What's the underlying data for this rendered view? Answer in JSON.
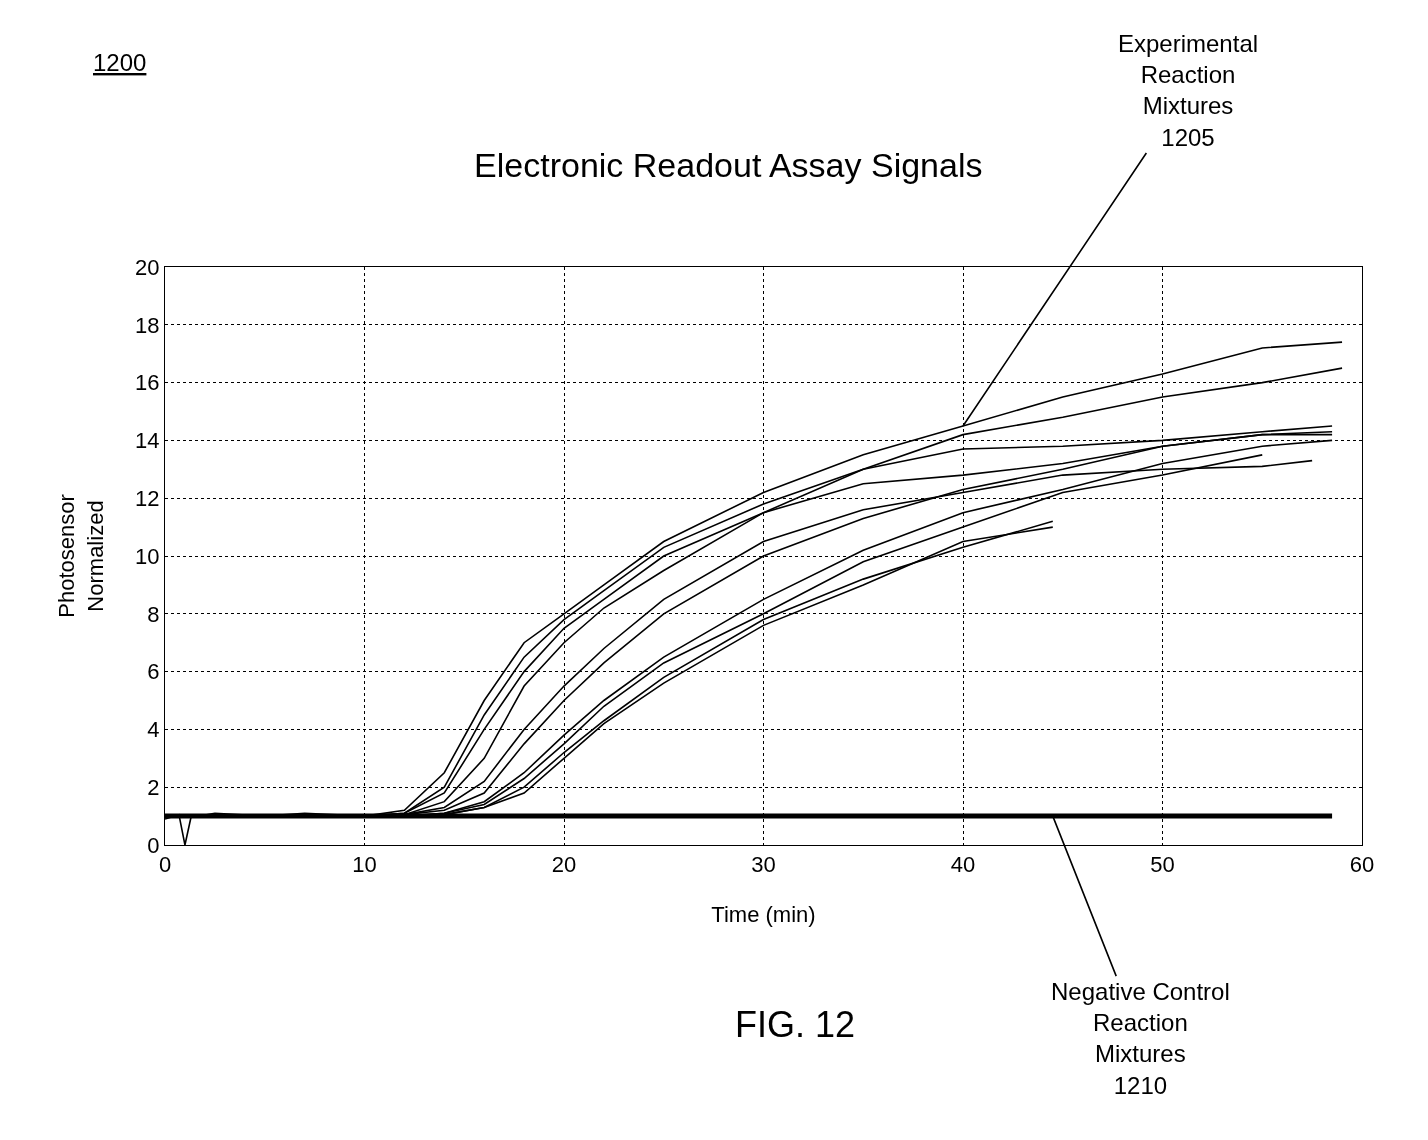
{
  "chart_data": {
    "type": "line",
    "title": "Electronic Readout Assay Signals",
    "xlabel": "Time (min)",
    "ylabel": "Photosensor\nNormalized",
    "xlim": [
      0,
      60
    ],
    "xticks": [
      0,
      10,
      20,
      30,
      40,
      50,
      60
    ],
    "ylim": [
      0,
      20
    ],
    "yticks": [
      0,
      2,
      4,
      6,
      8,
      10,
      12,
      14,
      16,
      18,
      20
    ],
    "grid": true,
    "marker": "none",
    "line_style": "solid",
    "series": [
      {
        "color": "#000000",
        "x": [
          0,
          0.7,
          1,
          1.3,
          2.5,
          5,
          7,
          10,
          12,
          14,
          16,
          18,
          20,
          22,
          25,
          30,
          35,
          40,
          45,
          50,
          55,
          59
        ],
        "values": [
          0.9,
          1.05,
          0,
          0.95,
          1.1,
          1,
          1.1,
          1,
          1.2,
          2.5,
          5,
          7,
          8,
          9,
          10.5,
          12.2,
          13.5,
          14.5,
          15.5,
          16.3,
          17.2,
          17.4
        ]
      },
      {
        "color": "#000000",
        "x": [
          0,
          10,
          12,
          14,
          16,
          18,
          20,
          22,
          25,
          30,
          35,
          40,
          45,
          50,
          55,
          59
        ],
        "values": [
          1,
          1,
          1.1,
          2,
          4.5,
          6.5,
          7.8,
          8.8,
          10.3,
          11.8,
          13,
          14.2,
          14.8,
          15.5,
          16,
          16.5
        ]
      },
      {
        "color": "#000000",
        "x": [
          0,
          10,
          12,
          14,
          16,
          18,
          20,
          22,
          25,
          30,
          35,
          40,
          45,
          50,
          55,
          58.5
        ],
        "values": [
          1,
          1,
          1.1,
          1.8,
          4,
          6,
          7.5,
          8.5,
          10,
          11.5,
          13,
          13.7,
          13.8,
          14,
          14.3,
          14.5
        ]
      },
      {
        "color": "#000000",
        "x": [
          0,
          10,
          12,
          14,
          16,
          18,
          20,
          22,
          25,
          30,
          35,
          40,
          45,
          50,
          55,
          58.5
        ],
        "values": [
          1,
          1,
          1.05,
          1.5,
          3,
          5.5,
          7,
          8.2,
          9.5,
          11.5,
          12.5,
          12.8,
          13.2,
          13.8,
          14.2,
          14.2
        ]
      },
      {
        "color": "#000000",
        "x": [
          0,
          10,
          12,
          14,
          16,
          18,
          20,
          22,
          25,
          30,
          35,
          40,
          45,
          50,
          55,
          57.5
        ],
        "values": [
          1,
          1,
          1.05,
          1.3,
          2.2,
          4,
          5.5,
          6.8,
          8.5,
          10.5,
          11.6,
          12.2,
          12.8,
          13,
          13.1,
          13.3
        ]
      },
      {
        "color": "#000000",
        "x": [
          0,
          10,
          12,
          14,
          16,
          18,
          20,
          22,
          25,
          30,
          35,
          40,
          45,
          50,
          55,
          58.5
        ],
        "values": [
          1,
          1,
          1.05,
          1.2,
          1.8,
          3.5,
          5,
          6.3,
          8,
          10,
          11.3,
          12.3,
          13,
          13.8,
          14.2,
          14.3
        ]
      },
      {
        "color": "#000000",
        "x": [
          0,
          10,
          12,
          14,
          16,
          18,
          20,
          22,
          25,
          30,
          35,
          40,
          45,
          50,
          55,
          58.5
        ],
        "values": [
          1,
          1,
          1.0,
          1.1,
          1.5,
          2.5,
          3.8,
          5,
          6.5,
          8.5,
          10.2,
          11.5,
          12.3,
          13.2,
          13.8,
          14.0
        ]
      },
      {
        "color": "#000000",
        "x": [
          0,
          10,
          12,
          14,
          16,
          18,
          20,
          22,
          25,
          30,
          35,
          40,
          45,
          50,
          55
        ],
        "values": [
          1,
          1,
          1.0,
          1.1,
          1.4,
          2.3,
          3.5,
          4.8,
          6.3,
          8,
          9.8,
          11,
          12.2,
          12.8,
          13.5
        ]
      },
      {
        "color": "#000000",
        "x": [
          0,
          10,
          14,
          16,
          18,
          20,
          22,
          25,
          30,
          35,
          40,
          44.5
        ],
        "values": [
          1,
          1,
          1.05,
          1.3,
          2,
          3.2,
          4.3,
          5.8,
          7.8,
          9.2,
          10.3,
          11.2
        ]
      },
      {
        "color": "#000000",
        "x": [
          0,
          10,
          14,
          16,
          18,
          20,
          22,
          25,
          30,
          35,
          40,
          44.5
        ],
        "values": [
          1,
          1,
          1.05,
          1.3,
          1.8,
          3,
          4.2,
          5.6,
          7.6,
          9,
          10.5,
          11.0
        ]
      },
      {
        "color": "#000000",
        "x": [
          0,
          58.5
        ],
        "values": [
          1,
          1
        ]
      }
    ],
    "annotations": [
      "1200",
      {
        "text": "Experimental\nReaction\nMixtures\n1205",
        "x": 40,
        "y": 14.5
      },
      {
        "text": "Negative Control\nReaction\nMixtures\n1210",
        "x": 44.5,
        "y": 1
      },
      "FIG. 12"
    ]
  }
}
